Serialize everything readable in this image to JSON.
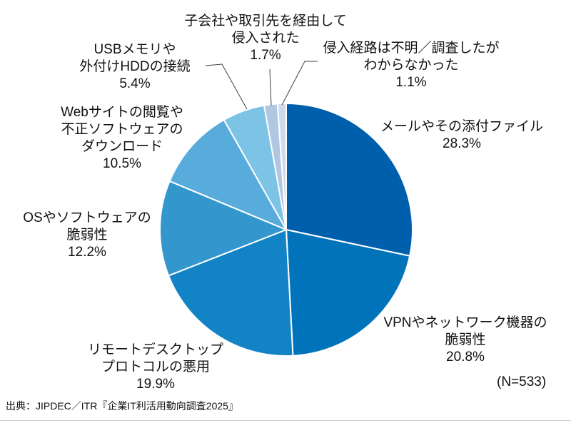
{
  "chart_data": {
    "type": "pie",
    "title": "",
    "orientation": "clockwise-from-12-oclock",
    "unit": "%",
    "sample_size_note": "(N=533)",
    "source": "出典：JIPDEC／ITR『企業IT利活用動向調査2025』",
    "slices": [
      {
        "name": "メールやその添付ファイル",
        "value": 28.3,
        "color": "#005FAC",
        "label_lines": [
          "メールやその添付ファイル",
          "28.3%"
        ]
      },
      {
        "name": "VPNやネットワーク機器の脆弱性",
        "value": 20.8,
        "color": "#0073BA",
        "label_lines": [
          "VPNやネットワーク機器の",
          "脆弱性",
          "20.8%"
        ]
      },
      {
        "name": "リモートデスクトッププロトコルの悪用",
        "value": 19.9,
        "color": "#1284C5",
        "label_lines": [
          "リモートデスクトップ",
          "プロトコルの悪用",
          "19.9%"
        ]
      },
      {
        "name": "OSやソフトウェアの脆弱性",
        "value": 12.2,
        "color": "#3397CE",
        "label_lines": [
          "OSやソフトウェアの",
          "脆弱性",
          "12.2%"
        ]
      },
      {
        "name": "Webサイトの閲覧や不正ソフトウェアのダウンロード",
        "value": 10.5,
        "color": "#58ACDC",
        "label_lines": [
          "Webサイトの閲覧や",
          "不正ソフトウェアの",
          "ダウンロード",
          "10.5%"
        ]
      },
      {
        "name": "USBメモリや外付けHDDの接続",
        "value": 5.4,
        "color": "#7CC3E5",
        "label_lines": [
          "USBメモリや",
          "外付けHDDの接続",
          "5.4%"
        ]
      },
      {
        "name": "子会社や取引先を経由して侵入された",
        "value": 1.7,
        "color": "#B0C7E1",
        "label_lines": [
          "子会社や取引先を経由して",
          "侵入された",
          "1.7%"
        ]
      },
      {
        "name": "侵入経路は不明／調査したがわからなかった",
        "value": 1.1,
        "color": "#CFDAEC",
        "label_lines": [
          "侵入経路は不明／調査したが",
          "わからなかった",
          "1.1%"
        ]
      }
    ]
  }
}
